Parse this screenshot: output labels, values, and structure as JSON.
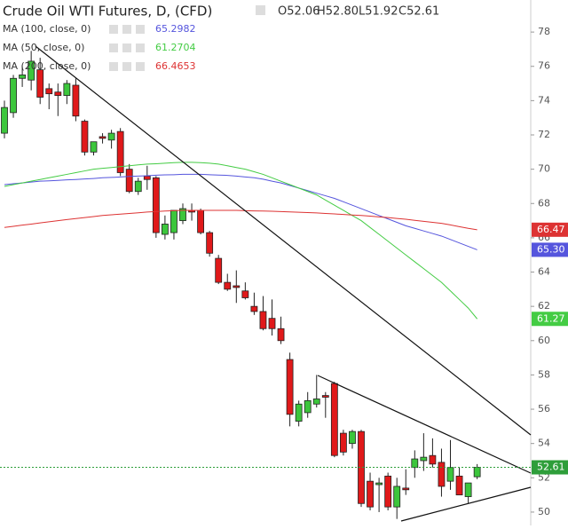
{
  "chart_data": {
    "type": "candlestick",
    "title": "Crude Oil WTI Futures, D, (CFD)",
    "ohlc_text": [
      "O52.06",
      "H52.80",
      "L51.92",
      "C52.61"
    ],
    "ylim": [
      49.22,
      79.87
    ],
    "yticks": [
      50,
      52,
      54,
      56,
      58,
      60,
      62,
      64,
      66,
      68,
      70,
      72,
      74,
      76,
      78
    ],
    "up_color": "#3cc63c",
    "down_color": "#e0191a",
    "open": [
      72.1,
      73.3,
      75.3,
      75.2,
      75.8,
      74.7,
      74.5,
      74.3,
      74.9,
      72.8,
      71.0,
      71.9,
      71.7,
      72.2,
      70.0,
      68.7,
      69.6,
      69.5,
      66.2,
      66.3,
      67.0,
      67.6,
      67.6,
      66.3,
      64.8,
      63.4,
      63.2,
      62.9,
      62.0,
      61.7,
      61.3,
      60.7,
      58.9,
      55.3,
      55.8,
      56.3,
      56.8,
      57.5,
      54.6,
      54.0,
      54.7,
      51.8,
      51.6,
      52.1,
      50.3,
      51.4,
      52.6,
      53.0,
      53.3,
      52.9,
      51.8,
      52.1,
      50.9,
      52.06
    ],
    "high": [
      74.0,
      75.5,
      76.0,
      76.9,
      76.5,
      75.0,
      75.0,
      75.2,
      75.3,
      72.9,
      71.6,
      72.1,
      72.3,
      72.4,
      70.3,
      69.5,
      70.2,
      69.6,
      67.3,
      67.5,
      68.0,
      68.0,
      67.7,
      66.4,
      65.0,
      63.9,
      64.1,
      63.4,
      62.8,
      62.6,
      62.4,
      61.4,
      59.3,
      56.5,
      57.0,
      58.0,
      57.0,
      57.6,
      54.8,
      54.8,
      54.8,
      52.3,
      52.0,
      52.3,
      52.0,
      52.5,
      53.6,
      54.6,
      54.3,
      53.7,
      54.2,
      52.6,
      51.4,
      52.8
    ],
    "low": [
      71.8,
      73.0,
      74.8,
      74.6,
      73.8,
      73.5,
      73.1,
      73.8,
      72.8,
      70.8,
      70.8,
      71.5,
      71.2,
      69.6,
      68.6,
      68.5,
      68.8,
      66.0,
      65.9,
      65.9,
      66.8,
      67.0,
      66.2,
      64.9,
      63.3,
      62.9,
      62.2,
      62.4,
      61.5,
      60.6,
      60.3,
      59.8,
      55.0,
      55.0,
      55.5,
      56.1,
      55.5,
      53.2,
      53.3,
      53.7,
      50.3,
      50.1,
      50.0,
      50.1,
      49.6,
      51.0,
      52.0,
      52.4,
      52.6,
      50.9,
      51.3,
      51.0,
      50.5,
      51.92
    ],
    "close": [
      73.6,
      75.3,
      75.5,
      76.3,
      74.2,
      74.4,
      74.3,
      75.0,
      73.1,
      71.0,
      71.6,
      71.8,
      72.1,
      69.8,
      68.7,
      69.3,
      69.4,
      66.3,
      66.8,
      67.6,
      67.7,
      67.5,
      66.3,
      65.1,
      63.4,
      63.0,
      63.1,
      62.5,
      61.7,
      60.7,
      60.7,
      60.0,
      55.7,
      56.3,
      56.5,
      56.6,
      56.7,
      53.3,
      53.5,
      54.7,
      50.5,
      50.3,
      51.7,
      50.3,
      51.5,
      51.3,
      53.1,
      53.2,
      52.8,
      51.5,
      52.6,
      51.0,
      51.7,
      52.61
    ],
    "series": [
      {
        "name": "MA (100, close, 0)",
        "value_text": "65.2982",
        "color": "#5555dd",
        "values": [
          69.1,
          69.15,
          69.2,
          69.25,
          69.3,
          69.32,
          69.35,
          69.38,
          69.4,
          69.43,
          69.46,
          69.5,
          69.52,
          69.55,
          69.58,
          69.6,
          69.62,
          69.65,
          69.67,
          69.68,
          69.7,
          69.7,
          69.7,
          69.68,
          69.66,
          69.64,
          69.6,
          69.55,
          69.5,
          69.42,
          69.3,
          69.2,
          69.05,
          68.9,
          68.75,
          68.6,
          68.45,
          68.3,
          68.1,
          67.9,
          67.7,
          67.5,
          67.3,
          67.1,
          66.9,
          66.7,
          66.55,
          66.4,
          66.25,
          66.1,
          65.9,
          65.7,
          65.5,
          65.2982
        ]
      },
      {
        "name": "MA (50, close, 0)",
        "value_text": "61.2704",
        "color": "#44cc44",
        "values": [
          69.0,
          69.1,
          69.2,
          69.3,
          69.4,
          69.5,
          69.6,
          69.7,
          69.8,
          69.9,
          70.0,
          70.05,
          70.1,
          70.15,
          70.2,
          70.25,
          70.3,
          70.32,
          70.35,
          70.38,
          70.4,
          70.4,
          70.38,
          70.35,
          70.3,
          70.2,
          70.1,
          70.0,
          69.85,
          69.7,
          69.5,
          69.3,
          69.1,
          68.9,
          68.7,
          68.5,
          68.2,
          67.9,
          67.6,
          67.3,
          67.0,
          66.6,
          66.2,
          65.8,
          65.4,
          65.0,
          64.6,
          64.2,
          63.8,
          63.4,
          62.9,
          62.4,
          61.9,
          61.2704
        ]
      },
      {
        "name": "MA (200, close, 0)",
        "value_text": "66.4653",
        "color": "#dd3333",
        "values": [
          66.6,
          66.67,
          66.74,
          66.8,
          66.87,
          66.93,
          67.0,
          67.06,
          67.12,
          67.18,
          67.24,
          67.3,
          67.34,
          67.38,
          67.42,
          67.46,
          67.5,
          67.53,
          67.56,
          67.58,
          67.6,
          67.6,
          67.6,
          67.6,
          67.6,
          67.6,
          67.6,
          67.58,
          67.57,
          67.56,
          67.55,
          67.53,
          67.51,
          67.49,
          67.47,
          67.45,
          67.42,
          67.39,
          67.36,
          67.33,
          67.3,
          67.26,
          67.22,
          67.18,
          67.13,
          67.08,
          67.02,
          66.96,
          66.9,
          66.84,
          66.75,
          66.65,
          66.55,
          66.4653
        ]
      }
    ],
    "price_labels": [
      {
        "value": 66.47,
        "label": "66.47",
        "color": "#dd3333"
      },
      {
        "value": 65.3,
        "label": "65.30",
        "color": "#5555dd"
      },
      {
        "value": 61.27,
        "label": "61.27",
        "color": "#44cc44"
      },
      {
        "value": 52.61,
        "label": "52.61",
        "color": "#2e9e3a"
      }
    ]
  }
}
